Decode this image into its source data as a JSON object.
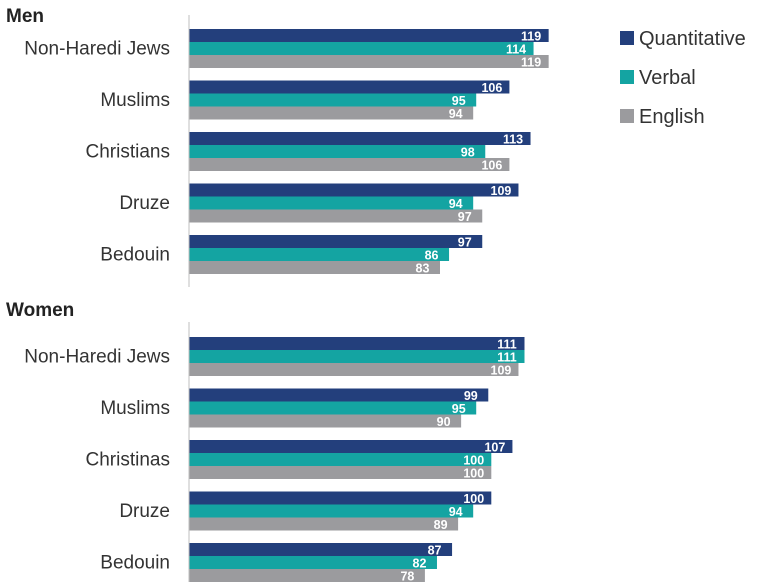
{
  "chart_data": [
    {
      "type": "bar",
      "orientation": "horizontal",
      "title": "Men",
      "categories": [
        "Non-Haredi Jews",
        "Muslims",
        "Christians",
        "Druze",
        "Bedouin"
      ],
      "series": [
        {
          "name": "Quantitative",
          "color": "#233f7c",
          "values": [
            119,
            106,
            113,
            109,
            97
          ]
        },
        {
          "name": "Verbal",
          "color": "#14a4a2",
          "values": [
            114,
            95,
            98,
            94,
            86
          ]
        },
        {
          "name": "English",
          "color": "#9b9b9e",
          "values": [
            119,
            94,
            106,
            97,
            83
          ]
        }
      ],
      "xlim": [
        0,
        119
      ]
    },
    {
      "type": "bar",
      "orientation": "horizontal",
      "title": "Women",
      "categories": [
        "Non-Haredi Jews",
        "Muslims",
        "Christinas",
        "Druze",
        "Bedouin"
      ],
      "series": [
        {
          "name": "Quantitative",
          "color": "#233f7c",
          "values": [
            111,
            99,
            107,
            100,
            87
          ]
        },
        {
          "name": "Verbal",
          "color": "#14a4a2",
          "values": [
            111,
            95,
            100,
            94,
            82
          ]
        },
        {
          "name": "English",
          "color": "#9b9b9e",
          "values": [
            109,
            90,
            100,
            89,
            78
          ]
        }
      ],
      "xlim": [
        0,
        119
      ]
    }
  ],
  "legend": {
    "placement": "top-right",
    "items": [
      {
        "label": "Quantitative",
        "color": "#233f7c"
      },
      {
        "label": "Verbal",
        "color": "#14a4a2"
      },
      {
        "label": "English",
        "color": "#9b9b9e"
      }
    ]
  }
}
